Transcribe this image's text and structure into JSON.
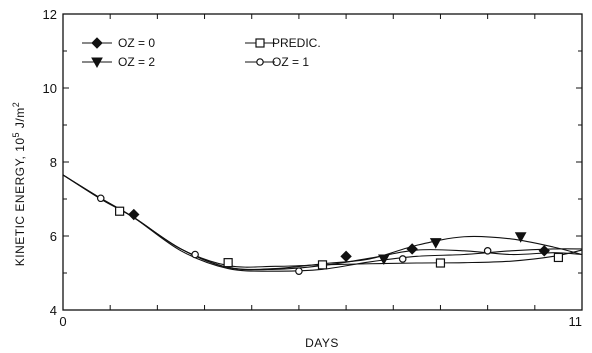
{
  "chart_data": {
    "type": "line",
    "title": "",
    "xlabel": "DAYS",
    "ylabel_main": "KINETIC ENERGY, 10",
    "ylabel_exp": "5",
    "ylabel_unit": " J/m",
    "ylabel_unit_exp": "2",
    "xlim": [
      0,
      11
    ],
    "ylim": [
      4,
      12
    ],
    "x_tick_labels": [
      "0",
      "11"
    ],
    "x_ticks": [
      0,
      11
    ],
    "y_ticks": [
      4,
      6,
      8,
      10,
      12
    ],
    "y_tick_labels": [
      "4",
      "6",
      "8",
      "10",
      "12"
    ],
    "grid": false,
    "legend_position": "top-left",
    "series": [
      {
        "name": "OZ = 0",
        "marker": "diamond",
        "x": [
          0,
          0.8,
          1.5,
          2.5,
          3.5,
          4.5,
          5.5,
          6.5,
          7.5,
          8.5,
          9.5,
          10.4,
          11
        ],
        "y": [
          7.65,
          7.02,
          6.5,
          5.65,
          5.15,
          5.1,
          5.2,
          5.4,
          5.62,
          5.6,
          5.5,
          5.55,
          5.5
        ],
        "marker_x": [
          1.5,
          6.0,
          7.4,
          10.2
        ],
        "marker_y": [
          6.58,
          5.45,
          5.65,
          5.6
        ]
      },
      {
        "name": "OZ = 2",
        "marker": "triangle-down",
        "x": [
          0,
          0.8,
          1.5,
          2.5,
          3.5,
          4.5,
          5.5,
          6.5,
          7.5,
          8.5,
          9.5,
          10.4,
          11
        ],
        "y": [
          7.65,
          7.0,
          6.5,
          5.65,
          5.15,
          5.12,
          5.25,
          5.38,
          5.75,
          5.98,
          5.92,
          5.7,
          5.5
        ],
        "marker_x": [
          6.8,
          7.9,
          9.7
        ],
        "marker_y": [
          5.38,
          5.82,
          5.98
        ]
      },
      {
        "name": "PREDIC.",
        "marker": "square-open",
        "x": [
          0,
          0.8,
          1.5,
          2.5,
          3.5,
          4.5,
          5.5,
          6.5,
          7.5,
          8.5,
          9.5,
          10.4,
          11
        ],
        "y": [
          7.65,
          7.0,
          6.5,
          5.65,
          5.2,
          5.18,
          5.22,
          5.25,
          5.27,
          5.28,
          5.32,
          5.45,
          5.62
        ],
        "marker_x": [
          1.2,
          3.5,
          5.5,
          8.0,
          10.5
        ],
        "marker_y": [
          6.67,
          5.28,
          5.22,
          5.27,
          5.42
        ]
      },
      {
        "name": "OZ = 1",
        "marker": "circle-open",
        "x": [
          0,
          0.8,
          1.5,
          2.5,
          3.5,
          4.5,
          5.5,
          6.5,
          7.5,
          8.5,
          9.5,
          10.4,
          11
        ],
        "y": [
          7.65,
          7.02,
          6.5,
          5.6,
          5.12,
          5.05,
          5.1,
          5.3,
          5.45,
          5.5,
          5.6,
          5.65,
          5.65
        ],
        "marker_x": [
          0.8,
          2.8,
          5.0,
          7.2,
          9.0
        ],
        "marker_y": [
          7.02,
          5.5,
          5.05,
          5.38,
          5.6
        ]
      }
    ]
  }
}
